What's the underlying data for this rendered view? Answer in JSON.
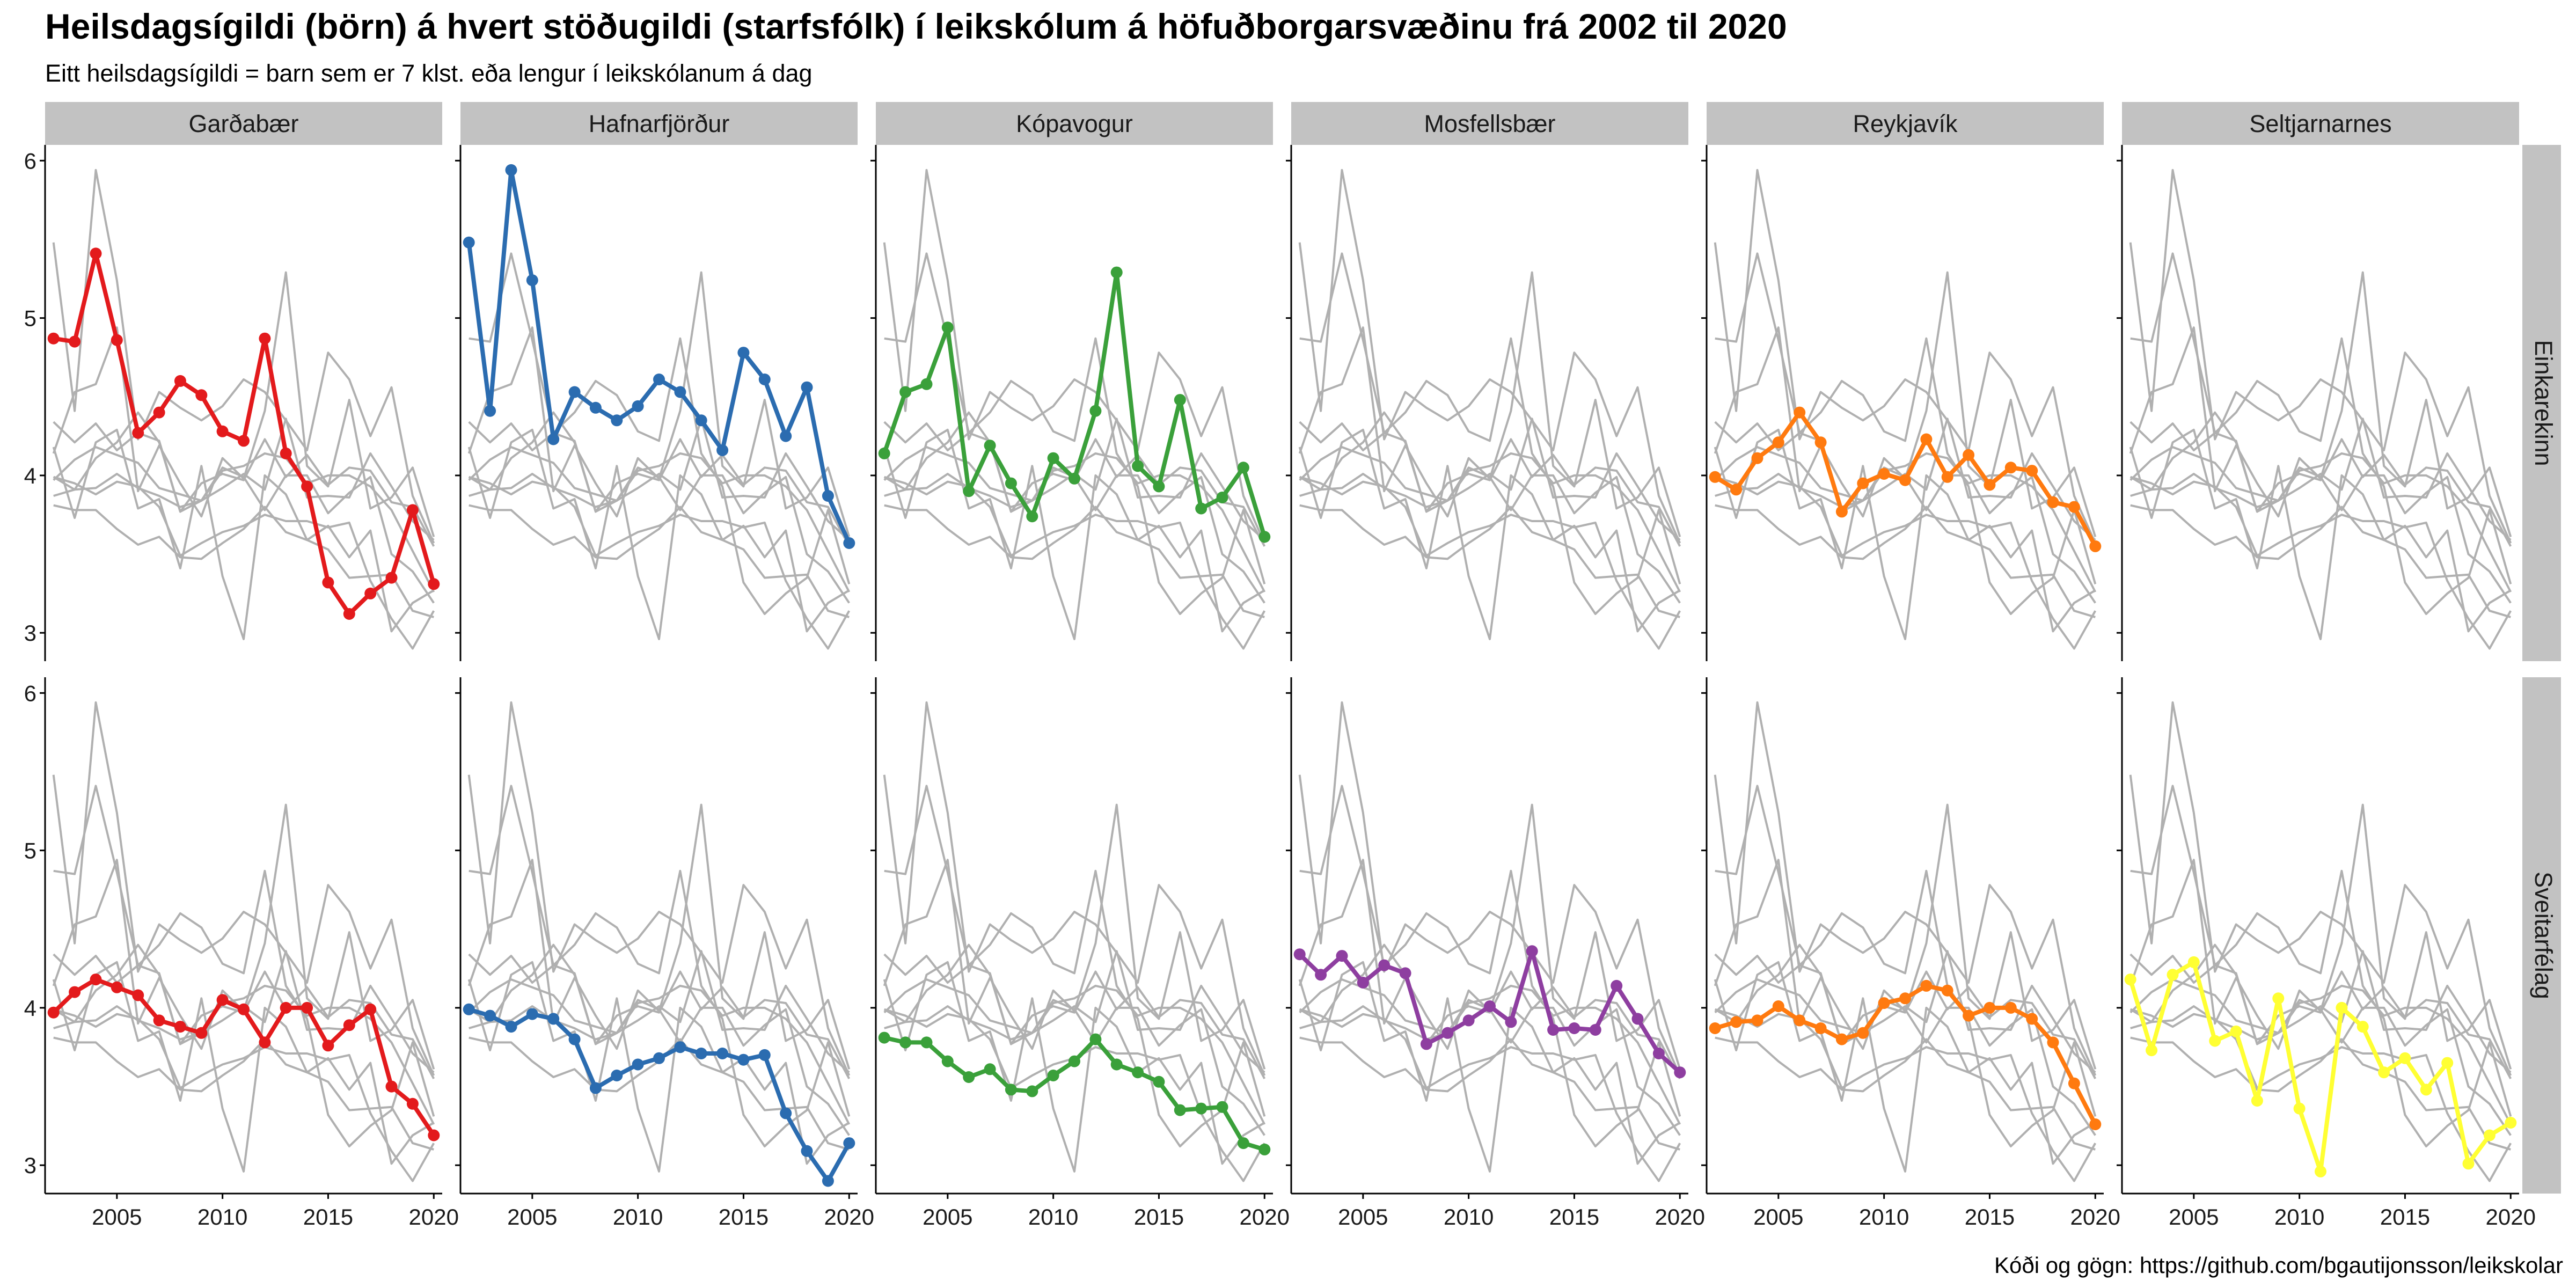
{
  "title": "Heilsdagsígildi (börn) á hvert stöðugildi (starfsfólk) í leikskólum á höfuðborgarsvæðinu frá 2002 til 2020",
  "subtitle": "Eitt heilsdagsígildi = barn sem er 7 klst. eða lengur í leikskólanum á dag",
  "caption": "Kóði og gögn: https://github.com/bgautijonsson/leikskolar",
  "colors": {
    "strip_bg": "#c2c2c2",
    "background_line": "#b0b0b0",
    "axis": "#000000"
  },
  "chart_data": {
    "type": "line",
    "facet_columns": [
      "Garðabær",
      "Hafnarfjörður",
      "Kópavogur",
      "Mosfellsbær",
      "Reykjavík",
      "Seltjarnarnes"
    ],
    "facet_rows": [
      "Einkarekinn",
      "Sveitarfélag"
    ],
    "x": [
      2002,
      2003,
      2004,
      2005,
      2006,
      2007,
      2008,
      2009,
      2010,
      2011,
      2012,
      2013,
      2014,
      2015,
      2016,
      2017,
      2018,
      2019,
      2020
    ],
    "x_ticks": [
      "2005",
      "2010",
      "2015",
      "2020"
    ],
    "x_tick_values": [
      2005,
      2010,
      2015,
      2020
    ],
    "y_ticks": [
      "3",
      "4",
      "5",
      "6"
    ],
    "y_tick_values": [
      3,
      4,
      5,
      6
    ],
    "xlim": [
      2001.6,
      2020.4
    ],
    "ylim": [
      2.82,
      6.1
    ],
    "grid": false,
    "highlight_colors": {
      "Garðabær": "#e31a1c",
      "Hafnarfjörður": "#2b6cb0",
      "Kópavogur": "#3aa03a",
      "Mosfellsbær": "#8e3ea0",
      "Reykjavík": "#ff7a0f",
      "Seltjarnarnes": "#ffff33"
    },
    "series": [
      {
        "row": "Einkarekinn",
        "municipality": "Garðabær",
        "values": [
          4.87,
          4.85,
          5.41,
          4.86,
          4.27,
          4.4,
          4.6,
          4.51,
          4.28,
          4.22,
          4.87,
          4.14,
          3.93,
          3.32,
          3.12,
          3.25,
          3.35,
          3.78,
          3.31
        ]
      },
      {
        "row": "Einkarekinn",
        "municipality": "Hafnarfjörður",
        "values": [
          5.48,
          4.41,
          5.94,
          5.24,
          4.23,
          4.53,
          4.43,
          4.35,
          4.44,
          4.61,
          4.53,
          4.35,
          4.16,
          4.78,
          4.61,
          4.25,
          4.56,
          3.87,
          3.57
        ]
      },
      {
        "row": "Einkarekinn",
        "municipality": "Kópavogur",
        "values": [
          4.14,
          4.53,
          4.58,
          4.94,
          3.9,
          4.19,
          3.95,
          3.74,
          4.11,
          3.98,
          4.41,
          5.29,
          4.06,
          3.93,
          4.48,
          3.79,
          3.86,
          4.05,
          3.61
        ]
      },
      {
        "row": "Einkarekinn",
        "municipality": "Reykjavík",
        "values": [
          3.99,
          3.91,
          4.11,
          4.21,
          4.4,
          4.21,
          3.77,
          3.95,
          4.01,
          3.97,
          4.23,
          3.99,
          4.13,
          3.94,
          4.05,
          4.03,
          3.83,
          3.8,
          3.55
        ]
      },
      {
        "row": "Sveitarfélag",
        "municipality": "Garðabær",
        "values": [
          3.97,
          4.1,
          4.18,
          4.13,
          4.08,
          3.92,
          3.88,
          3.84,
          4.05,
          3.99,
          3.78,
          4.0,
          4.0,
          3.76,
          3.89,
          3.99,
          3.5,
          3.39,
          3.19
        ]
      },
      {
        "row": "Sveitarfélag",
        "municipality": "Hafnarfjörður",
        "values": [
          3.99,
          3.95,
          3.88,
          3.96,
          3.93,
          3.8,
          3.49,
          3.57,
          3.64,
          3.68,
          3.75,
          3.71,
          3.71,
          3.67,
          3.7,
          3.33,
          3.09,
          2.9,
          3.14
        ]
      },
      {
        "row": "Sveitarfélag",
        "municipality": "Kópavogur",
        "values": [
          3.81,
          3.78,
          3.78,
          3.66,
          3.56,
          3.61,
          3.48,
          3.47,
          3.57,
          3.66,
          3.8,
          3.64,
          3.59,
          3.53,
          3.35,
          3.36,
          3.37,
          3.14,
          3.1
        ]
      },
      {
        "row": "Sveitarfélag",
        "municipality": "Mosfellsbær",
        "values": [
          4.34,
          4.21,
          4.33,
          4.16,
          4.27,
          4.22,
          3.77,
          3.84,
          3.92,
          4.01,
          3.91,
          4.36,
          3.86,
          3.87,
          3.86,
          4.14,
          3.93,
          3.71,
          3.59
        ]
      },
      {
        "row": "Sveitarfélag",
        "municipality": "Reykjavík",
        "values": [
          3.87,
          3.91,
          3.92,
          4.01,
          3.92,
          3.87,
          3.8,
          3.84,
          4.03,
          4.06,
          4.14,
          4.11,
          3.95,
          4.0,
          4.0,
          3.93,
          3.78,
          3.52,
          3.26
        ]
      },
      {
        "row": "Sveitarfélag",
        "municipality": "Seltjarnarnes",
        "values": [
          4.18,
          3.73,
          4.21,
          4.29,
          3.79,
          3.85,
          3.41,
          4.06,
          3.36,
          2.96,
          4.0,
          3.88,
          3.59,
          3.68,
          3.48,
          3.65,
          3.01,
          3.19,
          3.27
        ]
      }
    ]
  }
}
